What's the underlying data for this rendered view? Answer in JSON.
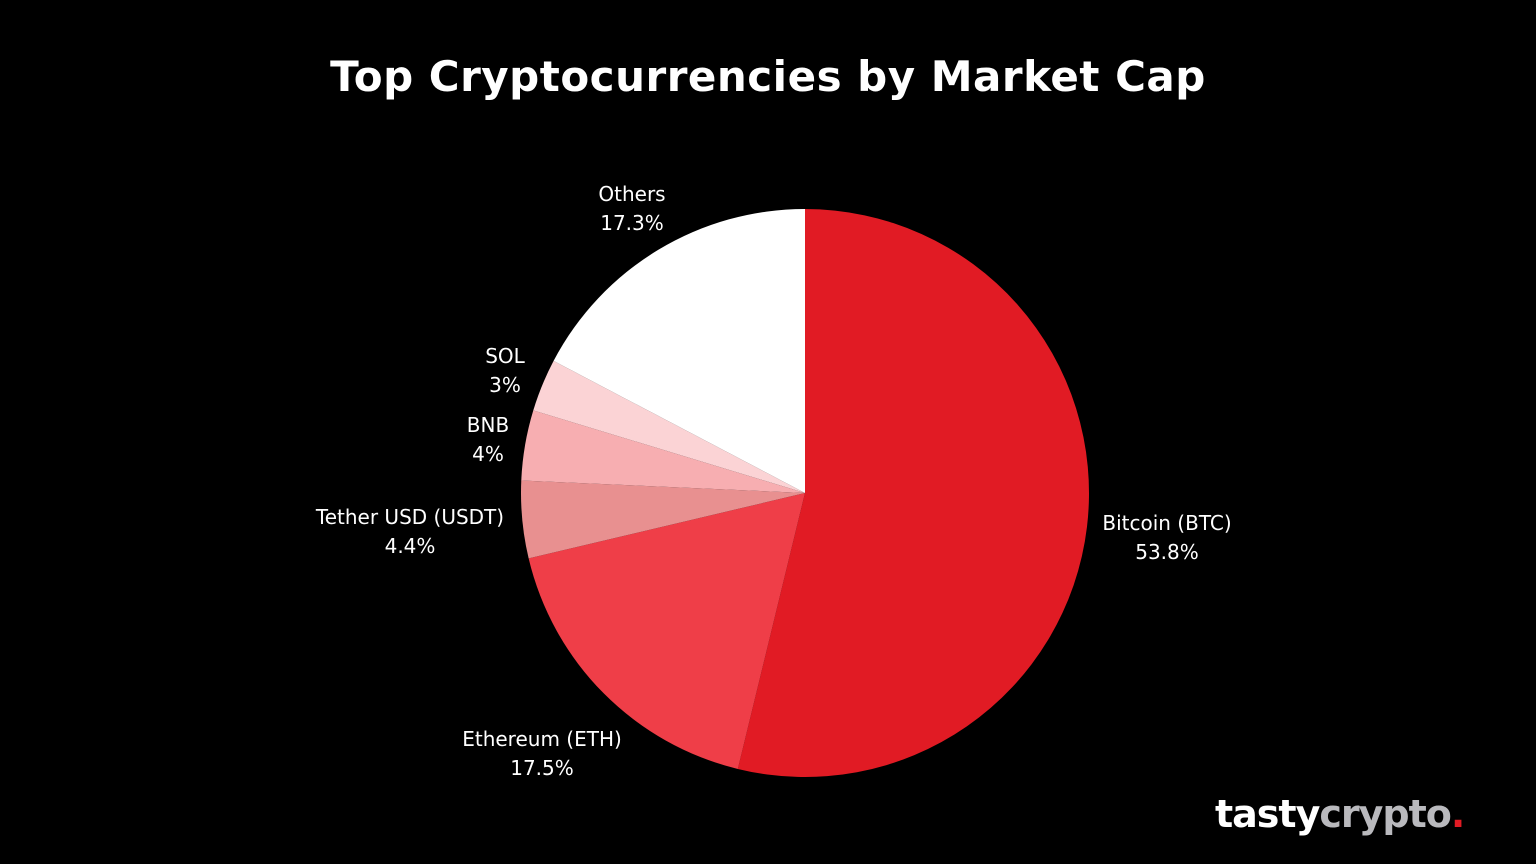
{
  "chart_data": {
    "type": "pie",
    "title": "Top Cryptocurrencies by Market Cap",
    "start_angle": "12 o'clock",
    "direction": "clockwise",
    "slices": [
      {
        "label": "Bitcoin (BTC)",
        "value": 53.8,
        "display": "53.8%",
        "color": "#E11B24"
      },
      {
        "label": "Ethereum (ETH)",
        "value": 17.5,
        "display": "17.5%",
        "color": "#EF3E48"
      },
      {
        "label": "Tether USD (USDT)",
        "value": 4.4,
        "display": "4.4%",
        "color": "#E89090"
      },
      {
        "label": "BNB",
        "value": 4,
        "display": "4%",
        "color": "#F7AEB1"
      },
      {
        "label": "SOL",
        "value": 3,
        "display": "3%",
        "color": "#FBD3D5"
      },
      {
        "label": "Others",
        "value": 17.3,
        "display": "17.3%",
        "color": "#FFFFFF"
      }
    ],
    "legend": "none (direct labels)"
  },
  "title": "Top Cryptocurrencies by Market Cap",
  "labels": {
    "btc": {
      "name": "Bitcoin (BTC)",
      "pct": "53.8%"
    },
    "eth": {
      "name": "Ethereum (ETH)",
      "pct": "17.5%"
    },
    "usdt": {
      "name": "Tether USD (USDT)",
      "pct": "4.4%"
    },
    "bnb": {
      "name": "BNB",
      "pct": "4%"
    },
    "sol": {
      "name": "SOL",
      "pct": "3%"
    },
    "others": {
      "name": "Others",
      "pct": "17.3%"
    }
  },
  "logo": {
    "part1": "tasty",
    "part2": "crypto",
    "dot": "."
  }
}
